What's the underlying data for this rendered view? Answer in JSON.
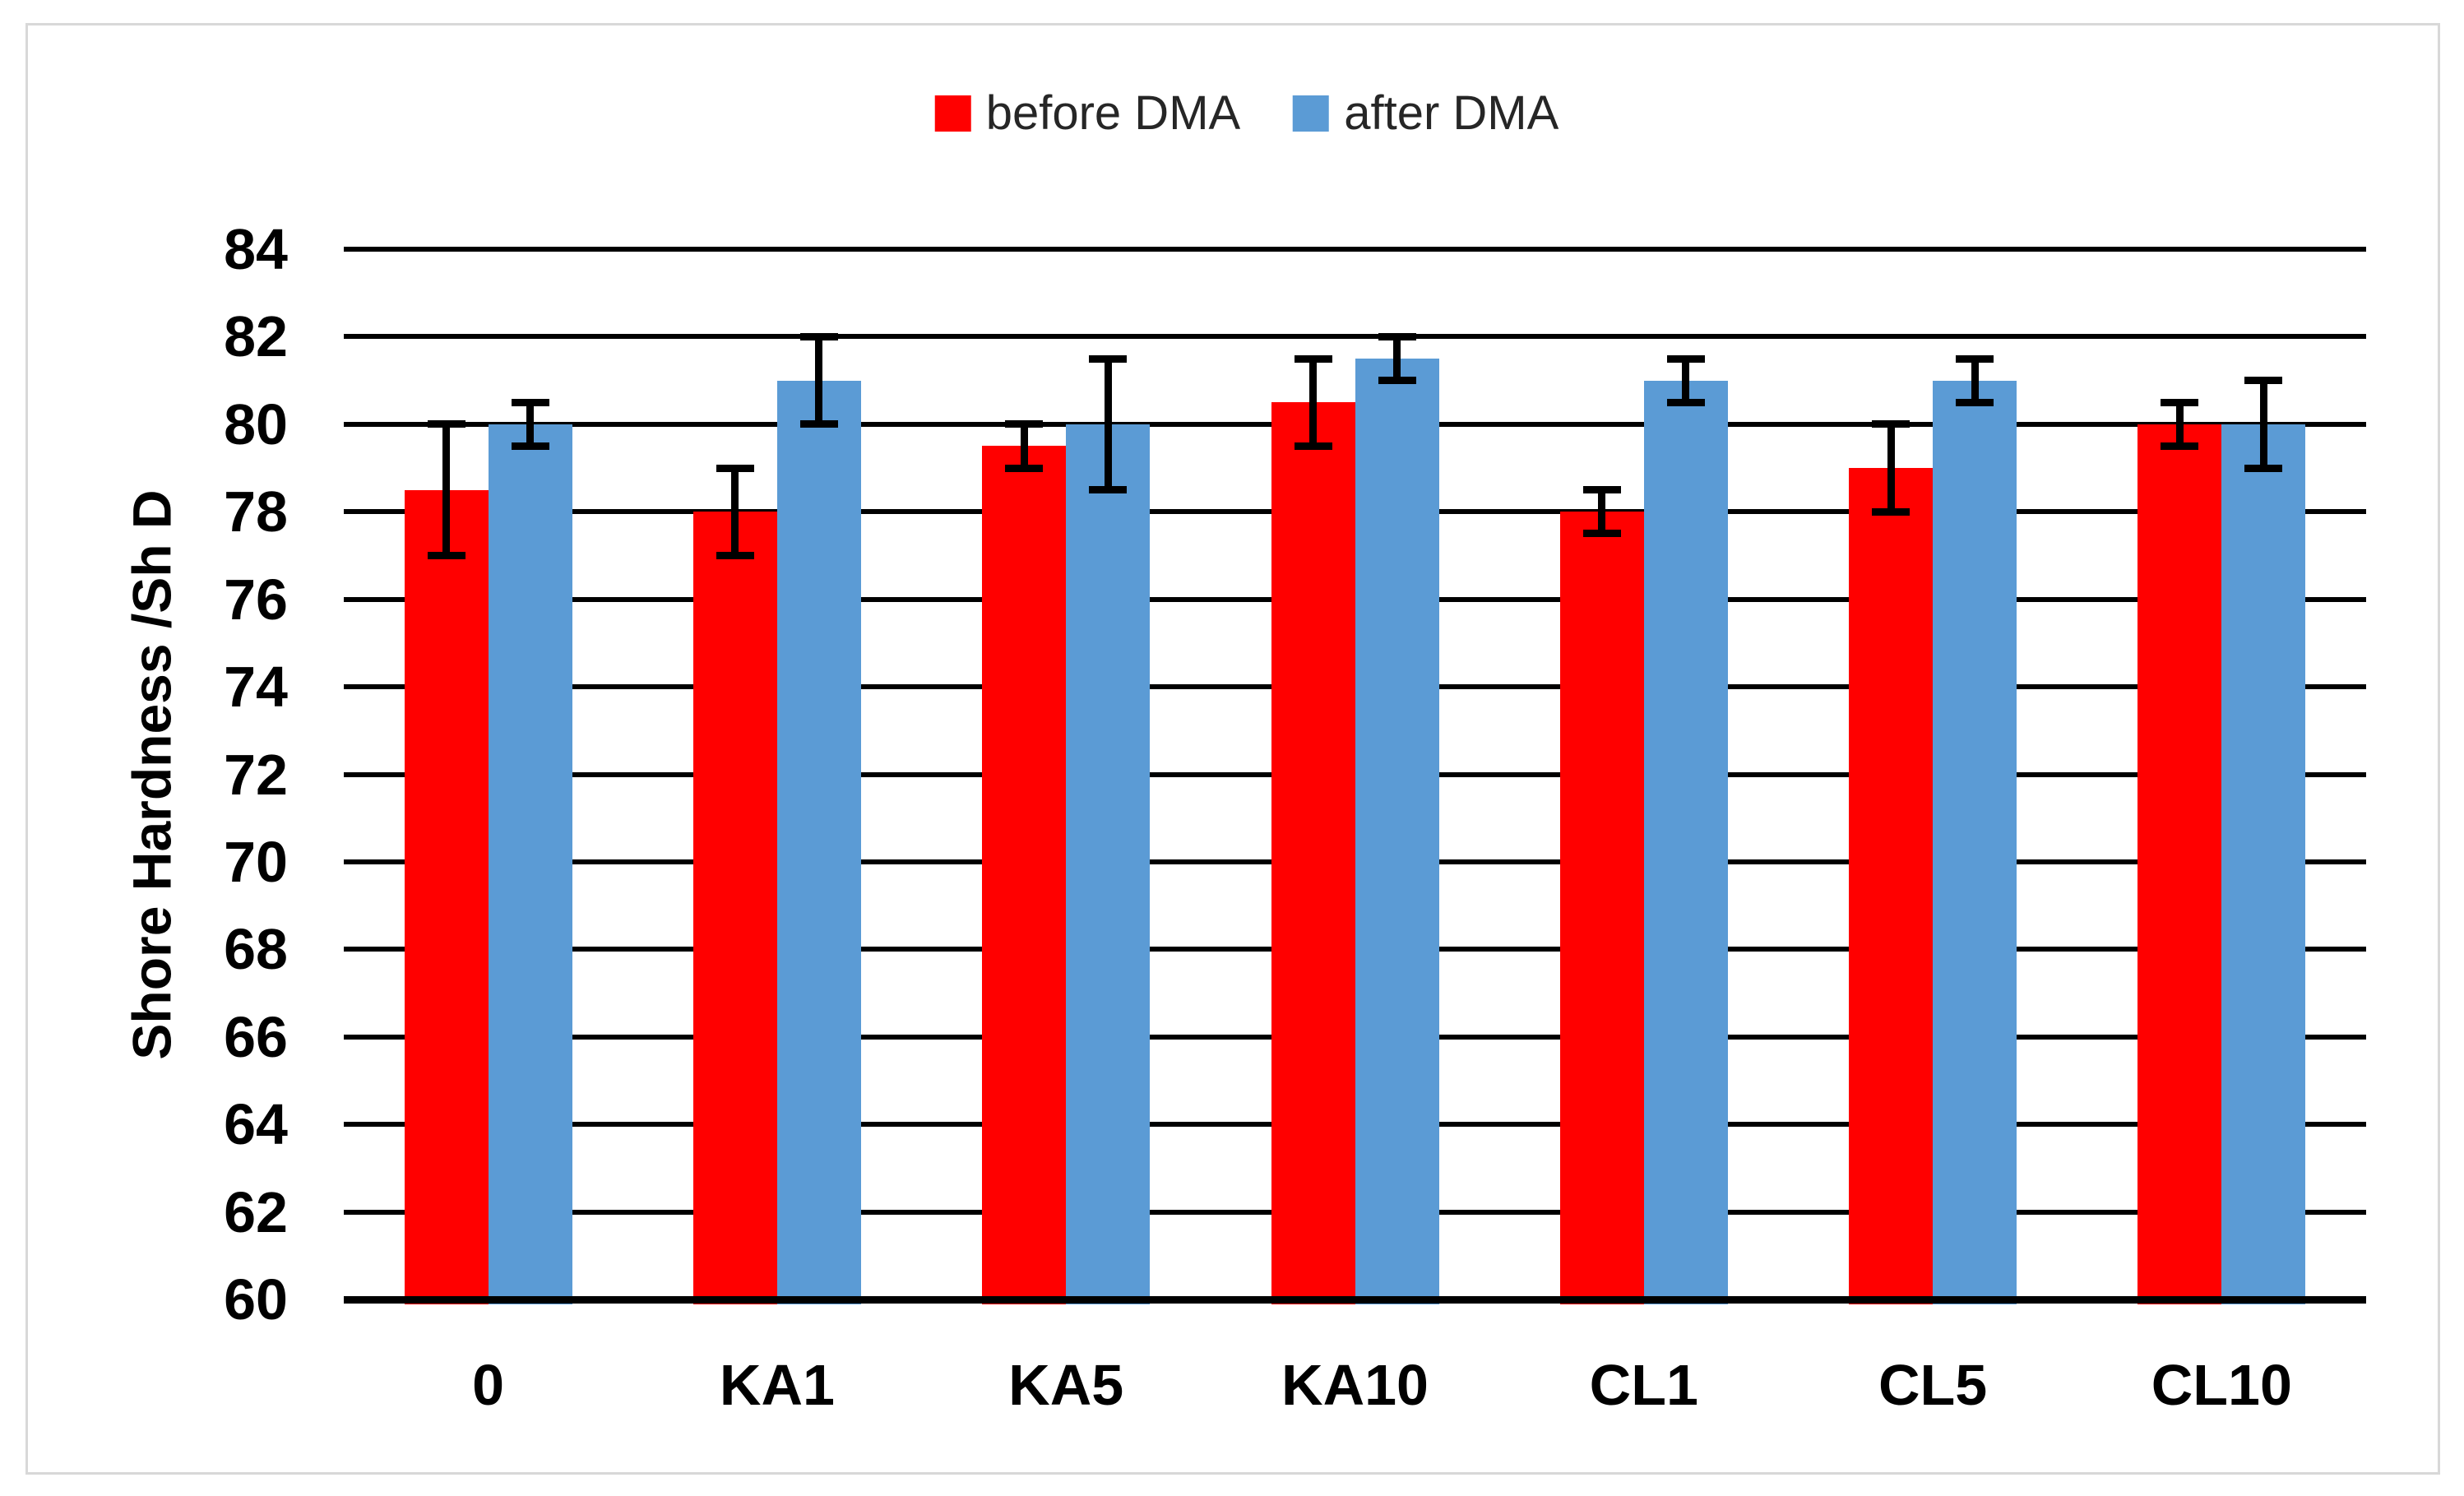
{
  "figure": {
    "background": "#ffffff",
    "border_color": "#d8d8d8"
  },
  "legend": {
    "position": "top-center",
    "items": [
      {
        "label": "before DMA",
        "color": "#ff0000"
      },
      {
        "label": "after DMA",
        "color": "#5b9bd5"
      }
    ]
  },
  "chart_data": {
    "type": "bar",
    "title": "",
    "categories": [
      "0",
      "KA1",
      "KA5",
      "KA10",
      "CL1",
      "CL5",
      "CL10"
    ],
    "series": [
      {
        "name": "before DMA",
        "color": "#ff0000",
        "values": [
          78.5,
          78,
          79.5,
          80.5,
          78,
          79,
          80
        ],
        "error_bars": [
          1.5,
          1,
          0.5,
          1,
          0.5,
          1,
          0.5
        ]
      },
      {
        "name": "after DMA",
        "color": "#5b9bd5",
        "values": [
          80,
          81,
          80,
          81.5,
          81,
          81,
          80
        ],
        "error_bars": [
          0.5,
          1,
          1.5,
          0.5,
          0.5,
          0.5,
          1
        ]
      }
    ],
    "xlabel": "",
    "ylabel": "Shore Hardness /Sh D",
    "ylim": [
      60,
      84
    ],
    "ytick_step": 2,
    "grid": true,
    "gridline_color": "#000000",
    "legend_position": "top"
  }
}
